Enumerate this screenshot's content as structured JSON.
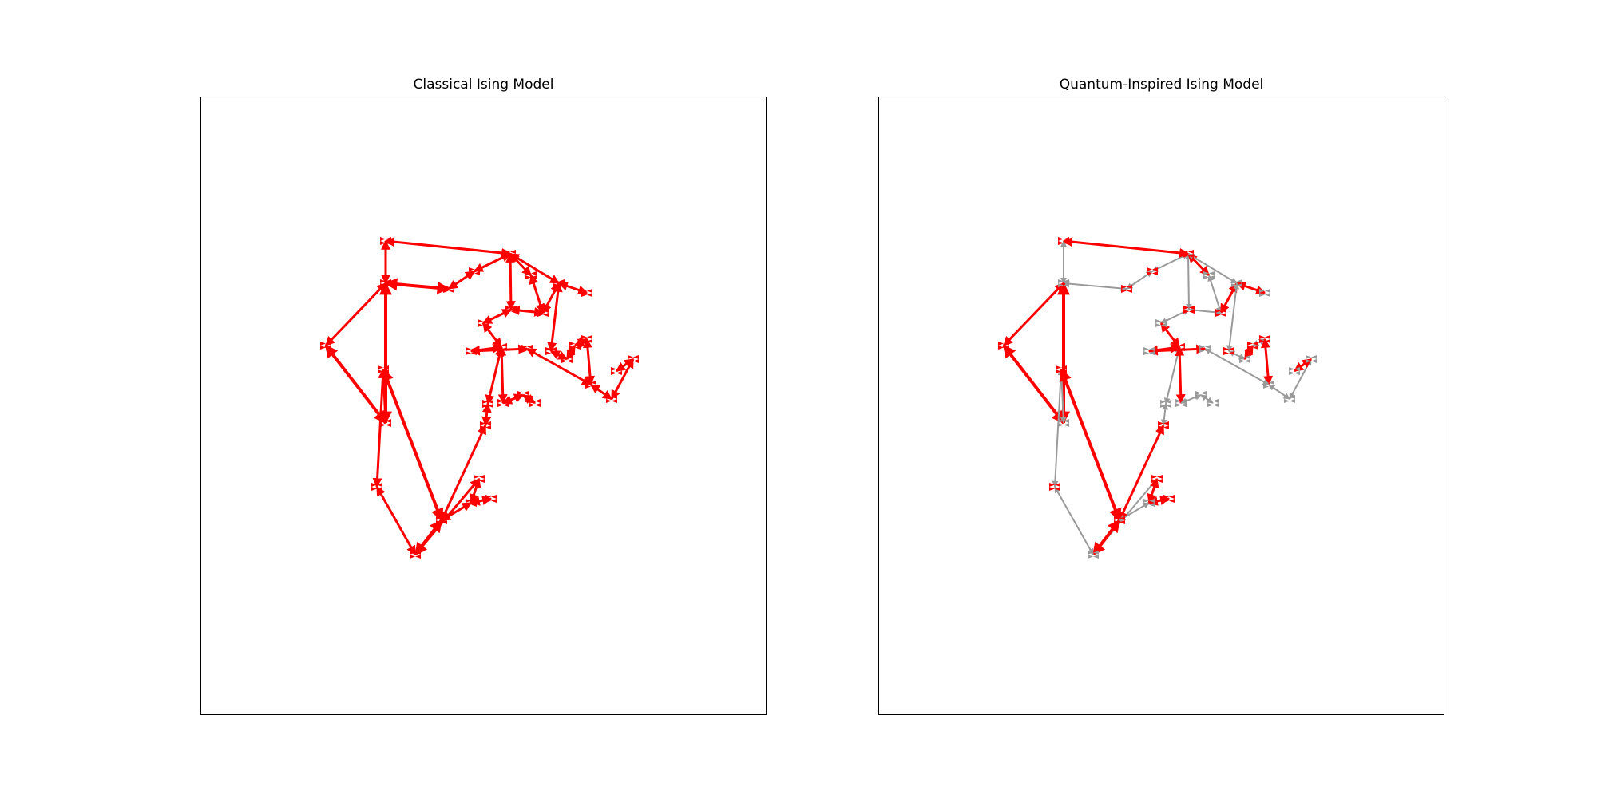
{
  "panels": [
    {
      "title": "Classical Ising Model",
      "uniform_color": "#ff0000"
    },
    {
      "title": "Quantum-Inspired Ising Model",
      "spin_up_color": "#ff0000",
      "spin_down_color": "#9a9a9a"
    }
  ]
}
